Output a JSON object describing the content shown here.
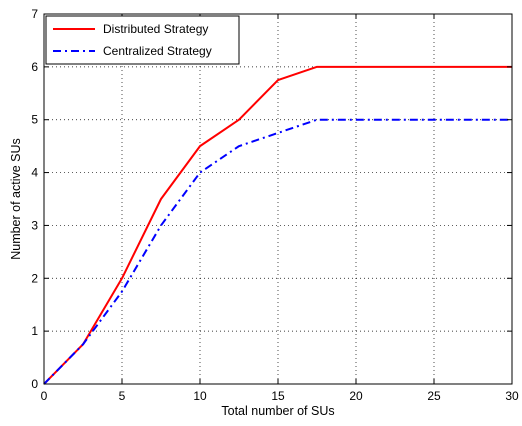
{
  "chart_data": {
    "type": "line",
    "title": "",
    "xlabel": "Total number of SUs",
    "ylabel": "Number of active SUs",
    "xlim": [
      0,
      30
    ],
    "ylim": [
      0,
      7
    ],
    "xticks": [
      0,
      5,
      10,
      15,
      20,
      25,
      30
    ],
    "yticks": [
      0,
      1,
      2,
      3,
      4,
      5,
      6,
      7
    ],
    "grid": true,
    "legend_position": "top-left",
    "series": [
      {
        "name": "Distributed Strategy",
        "color": "#ff0000",
        "line_style": "solid",
        "x": [
          0,
          2.5,
          5,
          7.5,
          10,
          12.5,
          15,
          17.5,
          20,
          22.5,
          25,
          27.5,
          30
        ],
        "y": [
          0,
          0.75,
          2.0,
          3.5,
          4.5,
          5.0,
          5.75,
          6.0,
          6.0,
          6.0,
          6.0,
          6.0,
          6.0
        ]
      },
      {
        "name": "Centralized Strategy",
        "color": "#0000ff",
        "line_style": "dash-dot",
        "x": [
          0,
          2.5,
          5,
          7.5,
          10,
          12.5,
          15,
          17.5,
          20,
          22.5,
          25,
          27.5,
          30
        ],
        "y": [
          0,
          0.75,
          1.75,
          3.0,
          4.0,
          4.5,
          4.75,
          5.0,
          5.0,
          5.0,
          5.0,
          5.0,
          5.0
        ]
      }
    ]
  }
}
